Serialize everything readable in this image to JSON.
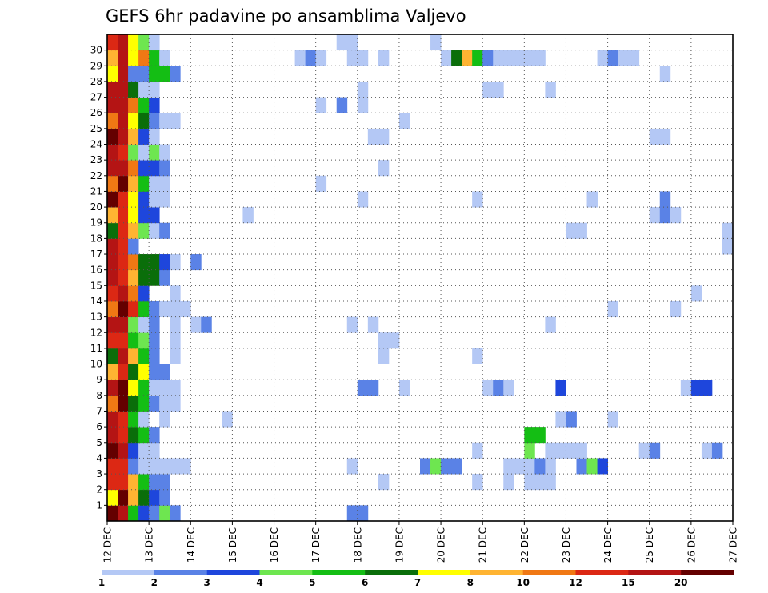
{
  "chart_data": {
    "type": "heatmap",
    "title": "GEFS 6hr padavine po ansamblima Valjevo",
    "xlabel": "",
    "ylabel": "",
    "x_ticks": [
      "12 DEC",
      "13 DEC",
      "14 DEC",
      "15 DEC",
      "16 DEC",
      "17 DEC",
      "18 DEC",
      "19 DEC",
      "20 DEC",
      "21 DEC",
      "22 DEC",
      "23 DEC",
      "24 DEC",
      "25 DEC",
      "26 DEC",
      "27 DEC"
    ],
    "y_ticks": [
      "1",
      "2",
      "3",
      "4",
      "5",
      "6",
      "7",
      "8",
      "9",
      "10",
      "11",
      "12",
      "13",
      "14",
      "15",
      "16",
      "17",
      "18",
      "19",
      "20",
      "21",
      "22",
      "23",
      "24",
      "25",
      "26",
      "27",
      "28",
      "29",
      "30"
    ],
    "xlim": [
      "12 DEC 00h",
      "27 DEC 00h"
    ],
    "ylim": [
      0,
      30
    ],
    "steps_per_day": 4,
    "grid": true,
    "colorbar": {
      "placement": "bottom",
      "colors": [
        "#b4c8f5",
        "#5a82e6",
        "#1e46dc",
        "#6ee650",
        "#14be14",
        "#0a6e0a",
        "#ffff00",
        "#ffb432",
        "#f07814",
        "#dc2814",
        "#b41414",
        "#640000"
      ],
      "labels": [
        "1",
        "2",
        "3",
        "4",
        "5",
        "6",
        "7",
        "8",
        "10",
        "12",
        "15",
        "20"
      ]
    },
    "category_mm_thresholds": [
      1,
      2,
      3,
      4,
      5,
      6,
      7,
      8,
      10,
      12,
      15,
      20
    ],
    "rows": [
      {
        "member": "0",
        "cells": [
          [
            0,
            11
          ],
          [
            1,
            10
          ],
          [
            2,
            4
          ],
          [
            3,
            2
          ],
          [
            4,
            1
          ],
          [
            5,
            3
          ],
          [
            6,
            1
          ],
          [
            23,
            1
          ],
          [
            24,
            1
          ]
        ]
      },
      {
        "member": "1",
        "cells": [
          [
            0,
            6
          ],
          [
            1,
            11
          ],
          [
            2,
            7
          ],
          [
            3,
            5
          ],
          [
            4,
            2
          ],
          [
            5,
            1
          ]
        ]
      },
      {
        "member": "2",
        "cells": [
          [
            0,
            9
          ],
          [
            1,
            9
          ],
          [
            2,
            7
          ],
          [
            3,
            4
          ],
          [
            4,
            1
          ],
          [
            5,
            1
          ],
          [
            26,
            0
          ],
          [
            35,
            0
          ],
          [
            38,
            0
          ],
          [
            40,
            0
          ],
          [
            41,
            0
          ],
          [
            42,
            0
          ]
        ]
      },
      {
        "member": "3",
        "cells": [
          [
            0,
            9
          ],
          [
            1,
            9
          ],
          [
            2,
            1
          ],
          [
            3,
            0
          ],
          [
            4,
            0
          ],
          [
            5,
            0
          ],
          [
            6,
            0
          ],
          [
            7,
            0
          ],
          [
            23,
            0
          ],
          [
            30,
            1
          ],
          [
            31,
            3
          ],
          [
            32,
            1
          ],
          [
            33,
            1
          ],
          [
            38,
            0
          ],
          [
            39,
            0
          ],
          [
            40,
            0
          ],
          [
            41,
            1
          ],
          [
            42,
            0
          ],
          [
            45,
            1
          ],
          [
            46,
            3
          ],
          [
            47,
            2
          ]
        ]
      },
      {
        "member": "4",
        "cells": [
          [
            0,
            11
          ],
          [
            1,
            10
          ],
          [
            2,
            2
          ],
          [
            3,
            0
          ],
          [
            4,
            0
          ],
          [
            35,
            0
          ],
          [
            40,
            3
          ],
          [
            42,
            0
          ],
          [
            43,
            0
          ],
          [
            44,
            0
          ],
          [
            45,
            0
          ],
          [
            51,
            0
          ],
          [
            52,
            1
          ],
          [
            57,
            0
          ],
          [
            58,
            1
          ]
        ]
      },
      {
        "member": "5",
        "cells": [
          [
            0,
            10
          ],
          [
            1,
            9
          ],
          [
            2,
            5
          ],
          [
            3,
            4
          ],
          [
            4,
            1
          ],
          [
            40,
            4
          ],
          [
            41,
            4
          ]
        ]
      },
      {
        "member": "6",
        "cells": [
          [
            0,
            10
          ],
          [
            1,
            9
          ],
          [
            2,
            4
          ],
          [
            3,
            0
          ],
          [
            5,
            0
          ],
          [
            11,
            0
          ],
          [
            43,
            0
          ],
          [
            44,
            1
          ],
          [
            48,
            0
          ]
        ]
      },
      {
        "member": "7",
        "cells": [
          [
            0,
            8
          ],
          [
            1,
            11
          ],
          [
            2,
            5
          ],
          [
            3,
            4
          ],
          [
            4,
            1
          ],
          [
            5,
            0
          ],
          [
            6,
            0
          ]
        ]
      },
      {
        "member": "8",
        "cells": [
          [
            0,
            10
          ],
          [
            1,
            11
          ],
          [
            2,
            6
          ],
          [
            3,
            4
          ],
          [
            4,
            0
          ],
          [
            5,
            0
          ],
          [
            6,
            0
          ],
          [
            24,
            1
          ],
          [
            25,
            1
          ],
          [
            28,
            0
          ],
          [
            36,
            0
          ],
          [
            37,
            1
          ],
          [
            38,
            0
          ],
          [
            43,
            2
          ],
          [
            55,
            0
          ],
          [
            56,
            2
          ],
          [
            57,
            2
          ]
        ]
      },
      {
        "member": "9",
        "cells": [
          [
            0,
            7
          ],
          [
            1,
            9
          ],
          [
            2,
            5
          ],
          [
            3,
            6
          ],
          [
            4,
            1
          ],
          [
            5,
            1
          ]
        ]
      },
      {
        "member": "10",
        "cells": [
          [
            0,
            5
          ],
          [
            1,
            10
          ],
          [
            2,
            7
          ],
          [
            3,
            4
          ],
          [
            4,
            1
          ],
          [
            6,
            0
          ],
          [
            26,
            0
          ],
          [
            35,
            0
          ]
        ]
      },
      {
        "member": "11",
        "cells": [
          [
            0,
            9
          ],
          [
            1,
            9
          ],
          [
            2,
            4
          ],
          [
            3,
            3
          ],
          [
            4,
            1
          ],
          [
            6,
            0
          ],
          [
            26,
            0
          ],
          [
            27,
            0
          ]
        ]
      },
      {
        "member": "12",
        "cells": [
          [
            0,
            10
          ],
          [
            1,
            10
          ],
          [
            2,
            3
          ],
          [
            3,
            0
          ],
          [
            4,
            1
          ],
          [
            6,
            0
          ],
          [
            8,
            0
          ],
          [
            9,
            1
          ],
          [
            23,
            0
          ],
          [
            25,
            0
          ],
          [
            42,
            0
          ]
        ]
      },
      {
        "member": "13",
        "cells": [
          [
            0,
            8
          ],
          [
            1,
            11
          ],
          [
            2,
            9
          ],
          [
            3,
            4
          ],
          [
            4,
            1
          ],
          [
            5,
            0
          ],
          [
            6,
            0
          ],
          [
            7,
            0
          ],
          [
            48,
            0
          ],
          [
            54,
            0
          ]
        ]
      },
      {
        "member": "14",
        "cells": [
          [
            0,
            9
          ],
          [
            1,
            10
          ],
          [
            2,
            8
          ],
          [
            3,
            2
          ],
          [
            6,
            0
          ],
          [
            56,
            0
          ]
        ]
      },
      {
        "member": "15",
        "cells": [
          [
            0,
            10
          ],
          [
            1,
            9
          ],
          [
            2,
            7
          ],
          [
            3,
            5
          ],
          [
            4,
            5
          ],
          [
            5,
            1
          ]
        ]
      },
      {
        "member": "16",
        "cells": [
          [
            0,
            10
          ],
          [
            1,
            9
          ],
          [
            2,
            8
          ],
          [
            3,
            5
          ],
          [
            4,
            5
          ],
          [
            5,
            2
          ],
          [
            6,
            0
          ],
          [
            8,
            1
          ]
        ]
      },
      {
        "member": "17",
        "cells": [
          [
            0,
            10
          ],
          [
            1,
            9
          ],
          [
            2,
            1
          ],
          [
            59,
            0
          ]
        ]
      },
      {
        "member": "18",
        "cells": [
          [
            0,
            5
          ],
          [
            1,
            9
          ],
          [
            2,
            7
          ],
          [
            3,
            3
          ],
          [
            4,
            0
          ],
          [
            5,
            1
          ],
          [
            44,
            0
          ],
          [
            45,
            0
          ],
          [
            59,
            0
          ]
        ]
      },
      {
        "member": "19",
        "cells": [
          [
            0,
            7
          ],
          [
            1,
            9
          ],
          [
            2,
            6
          ],
          [
            3,
            2
          ],
          [
            4,
            2
          ],
          [
            13,
            0
          ],
          [
            52,
            0
          ],
          [
            53,
            1
          ],
          [
            54,
            0
          ]
        ]
      },
      {
        "member": "20",
        "cells": [
          [
            0,
            11
          ],
          [
            1,
            9
          ],
          [
            2,
            6
          ],
          [
            3,
            2
          ],
          [
            4,
            0
          ],
          [
            5,
            0
          ],
          [
            24,
            0
          ],
          [
            35,
            0
          ],
          [
            46,
            0
          ],
          [
            53,
            1
          ]
        ]
      },
      {
        "member": "21",
        "cells": [
          [
            0,
            8
          ],
          [
            1,
            11
          ],
          [
            2,
            7
          ],
          [
            3,
            4
          ],
          [
            4,
            0
          ],
          [
            5,
            0
          ],
          [
            20,
            0
          ]
        ]
      },
      {
        "member": "22",
        "cells": [
          [
            0,
            10
          ],
          [
            1,
            10
          ],
          [
            2,
            8
          ],
          [
            3,
            2
          ],
          [
            4,
            2
          ],
          [
            5,
            1
          ],
          [
            26,
            0
          ]
        ]
      },
      {
        "member": "23",
        "cells": [
          [
            0,
            10
          ],
          [
            1,
            9
          ],
          [
            2,
            3
          ],
          [
            3,
            0
          ],
          [
            4,
            3
          ],
          [
            5,
            0
          ]
        ]
      },
      {
        "member": "24",
        "cells": [
          [
            0,
            11
          ],
          [
            1,
            10
          ],
          [
            2,
            7
          ],
          [
            3,
            2
          ],
          [
            4,
            0
          ],
          [
            25,
            0
          ],
          [
            26,
            0
          ],
          [
            52,
            0
          ],
          [
            53,
            0
          ]
        ]
      },
      {
        "member": "25",
        "cells": [
          [
            0,
            8
          ],
          [
            1,
            10
          ],
          [
            2,
            6
          ],
          [
            3,
            5
          ],
          [
            4,
            1
          ],
          [
            5,
            0
          ],
          [
            6,
            0
          ],
          [
            28,
            0
          ]
        ]
      },
      {
        "member": "26",
        "cells": [
          [
            0,
            10
          ],
          [
            1,
            10
          ],
          [
            2,
            8
          ],
          [
            3,
            4
          ],
          [
            4,
            2
          ],
          [
            20,
            0
          ],
          [
            22,
            1
          ],
          [
            24,
            0
          ]
        ]
      },
      {
        "member": "27",
        "cells": [
          [
            0,
            10
          ],
          [
            1,
            10
          ],
          [
            2,
            5
          ],
          [
            3,
            0
          ],
          [
            4,
            0
          ],
          [
            24,
            0
          ],
          [
            36,
            0
          ],
          [
            37,
            0
          ],
          [
            42,
            0
          ]
        ]
      },
      {
        "member": "28",
        "cells": [
          [
            0,
            6
          ],
          [
            1,
            10
          ],
          [
            2,
            1
          ],
          [
            3,
            1
          ],
          [
            4,
            4
          ],
          [
            5,
            4
          ],
          [
            6,
            1
          ],
          [
            53,
            0
          ]
        ]
      },
      {
        "member": "29",
        "cells": [
          [
            0,
            7
          ],
          [
            1,
            10
          ],
          [
            2,
            6
          ],
          [
            3,
            8
          ],
          [
            4,
            4
          ],
          [
            5,
            0
          ],
          [
            18,
            0
          ],
          [
            19,
            1
          ],
          [
            20,
            0
          ],
          [
            23,
            0
          ],
          [
            24,
            0
          ],
          [
            26,
            0
          ],
          [
            32,
            0
          ],
          [
            33,
            5
          ],
          [
            34,
            7
          ],
          [
            35,
            4
          ],
          [
            36,
            1
          ],
          [
            37,
            0
          ],
          [
            38,
            0
          ],
          [
            39,
            0
          ],
          [
            40,
            0
          ],
          [
            41,
            0
          ],
          [
            47,
            0
          ],
          [
            48,
            1
          ],
          [
            49,
            0
          ],
          [
            50,
            0
          ]
        ]
      },
      {
        "member": "30",
        "cells": [
          [
            0,
            9
          ],
          [
            1,
            10
          ],
          [
            2,
            6
          ],
          [
            3,
            3
          ],
          [
            4,
            0
          ],
          [
            22,
            0
          ],
          [
            23,
            0
          ],
          [
            31,
            0
          ]
        ]
      }
    ]
  }
}
